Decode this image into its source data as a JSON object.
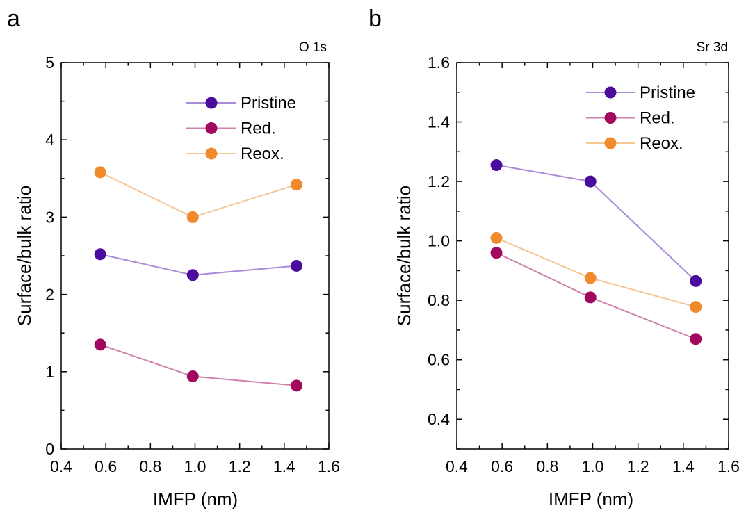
{
  "chart_data": [
    {
      "type": "line",
      "panel_letter": "a",
      "corner_label": "O 1s",
      "xlabel": "IMFP (nm)",
      "ylabel": "Surface/bulk ratio",
      "xlim": [
        0.4,
        1.6
      ],
      "ylim": [
        0,
        5
      ],
      "xticks": [
        "0.4",
        "0.6",
        "0.8",
        "1.0",
        "1.2",
        "1.4",
        "1.6"
      ],
      "yticks": [
        "0",
        "1",
        "2",
        "3",
        "4",
        "5"
      ],
      "legend_position": "top-right",
      "x": [
        0.575,
        0.99,
        1.455
      ],
      "series": [
        {
          "name": "Pristine",
          "values": [
            2.52,
            2.25,
            2.37
          ],
          "line_color": "#a98cd8",
          "marker_color": "#4b0c9e"
        },
        {
          "name": "Red.",
          "values": [
            1.35,
            0.94,
            0.82
          ],
          "line_color": "#cf80ad",
          "marker_color": "#a2095e"
        },
        {
          "name": "Reox.",
          "values": [
            3.58,
            3.0,
            3.42
          ],
          "line_color": "#f6c693",
          "marker_color": "#f08a2c"
        }
      ]
    },
    {
      "type": "line",
      "panel_letter": "b",
      "corner_label": "Sr 3d",
      "xlabel": "IMFP (nm)",
      "ylabel": "Surface/bulk ratio",
      "xlim": [
        0.4,
        1.6
      ],
      "ylim": [
        0.3,
        1.6
      ],
      "xticks": [
        "0.4",
        "0.6",
        "0.8",
        "1.0",
        "1.2",
        "1.4",
        "1.6"
      ],
      "yticks": [
        "0.4",
        "0.6",
        "0.8",
        "1.0",
        "1.2",
        "1.4",
        "1.6"
      ],
      "legend_position": "top-right",
      "x": [
        0.575,
        0.99,
        1.455
      ],
      "series": [
        {
          "name": "Pristine",
          "values": [
            1.255,
            1.2,
            0.865
          ],
          "line_color": "#a98cd8",
          "marker_color": "#4b0c9e"
        },
        {
          "name": "Red.",
          "values": [
            0.96,
            0.81,
            0.67
          ],
          "line_color": "#cf80ad",
          "marker_color": "#a2095e"
        },
        {
          "name": "Reox.",
          "values": [
            1.01,
            0.875,
            0.778
          ],
          "line_color": "#f6c693",
          "marker_color": "#f08a2c"
        }
      ]
    }
  ]
}
